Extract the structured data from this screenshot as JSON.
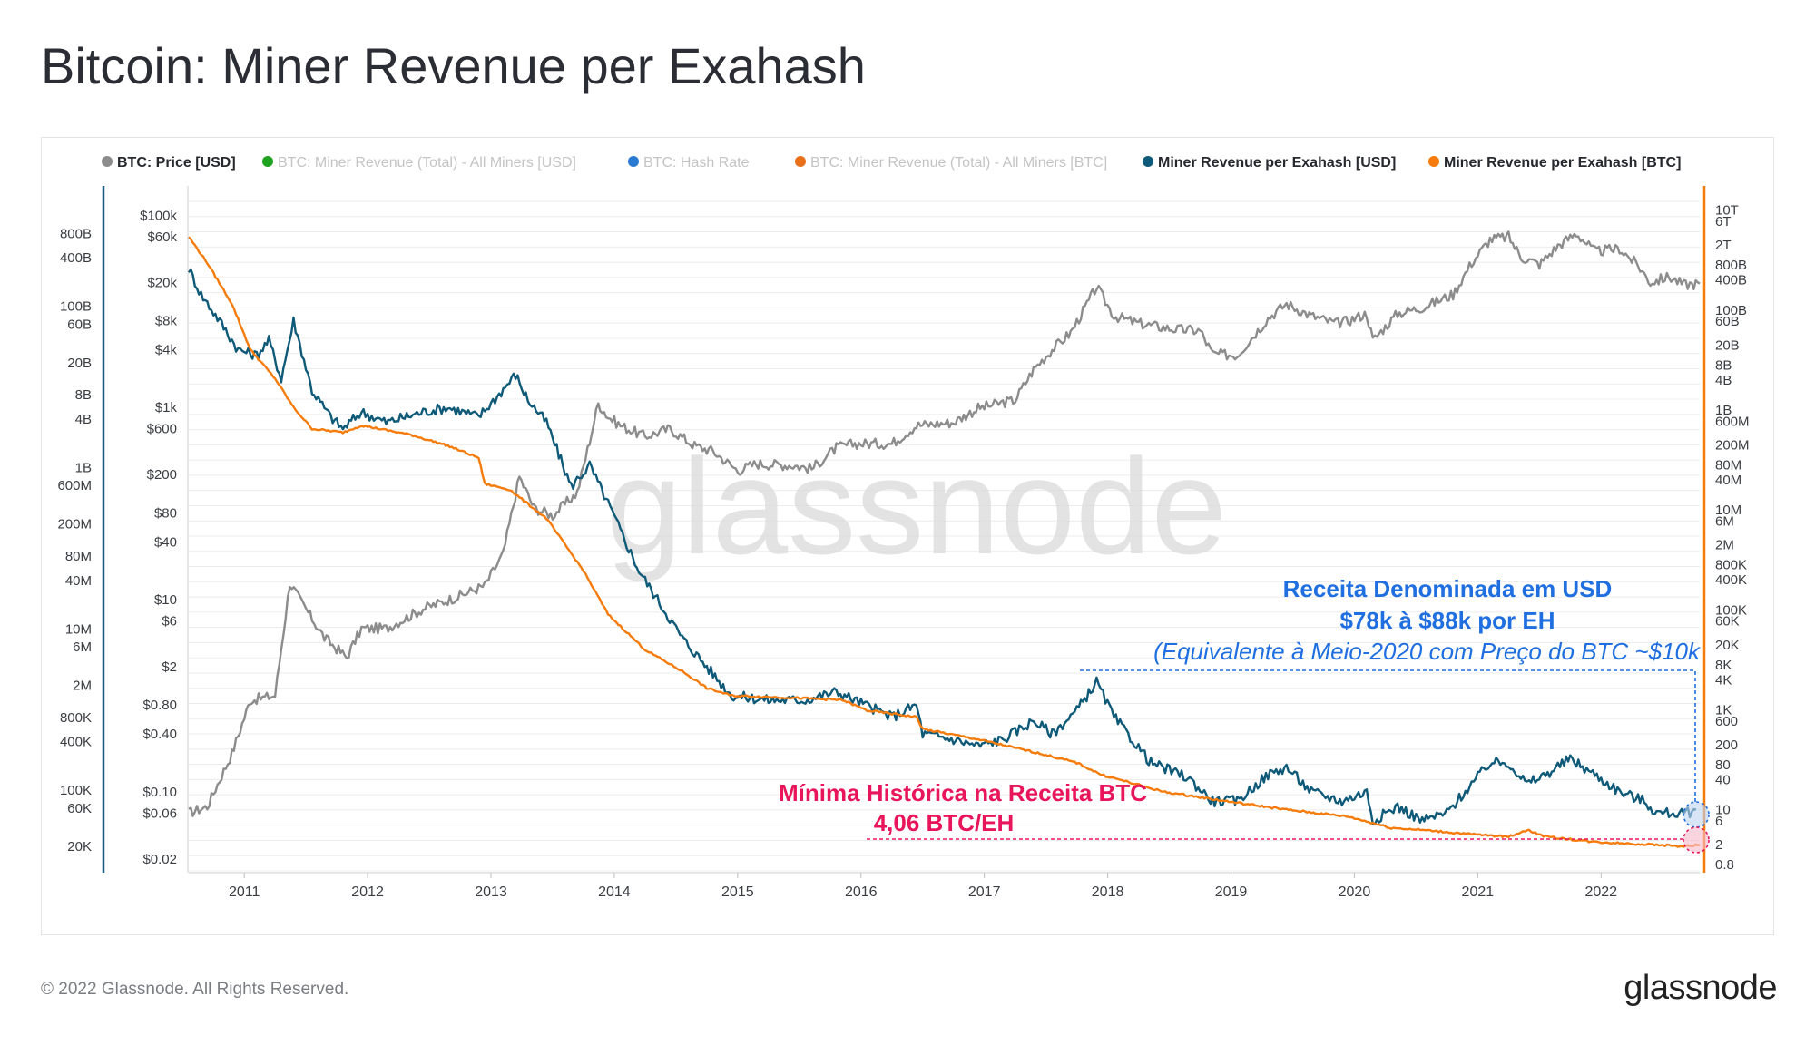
{
  "title": "Bitcoin: Miner Revenue per Exahash",
  "footer": {
    "copyright": "© 2022 Glassnode. All Rights Reserved.",
    "logo_text": "glassnode"
  },
  "watermark": "glassnode",
  "chart_data": {
    "type": "line",
    "title": "Bitcoin: Miner Revenue per Exahash",
    "legend": [
      {
        "name": "BTC: Price [USD]",
        "color": "#8c8c8c",
        "active": true
      },
      {
        "name": "BTC: Miner Revenue (Total) - All Miners [USD]",
        "color": "#1fa21f",
        "active": false
      },
      {
        "name": "BTC: Hash Rate",
        "color": "#2a7ad1",
        "active": false
      },
      {
        "name": "BTC: Miner Revenue (Total) - All Miners [BTC]",
        "color": "#e8701a",
        "active": false
      },
      {
        "name": "Miner Revenue per Exahash [USD]",
        "color": "#0f5a78",
        "active": true
      },
      {
        "name": "Miner Revenue per Exahash [BTC]",
        "color": "#f57c0c",
        "active": true
      }
    ],
    "legend_placement": "top",
    "x_ticks": [
      "2011",
      "2012",
      "2013",
      "2014",
      "2015",
      "2016",
      "2017",
      "2018",
      "2019",
      "2020",
      "2021",
      "2022"
    ],
    "xlim": [
      2010.6,
      2022.85
    ],
    "axes": {
      "left_outer": {
        "scale": "log",
        "range": [
          10000,
          2000000000000
        ],
        "ticks": [
          "800B",
          "400B",
          "100B",
          "60B",
          "20B",
          "8B",
          "4B",
          "1B",
          "600M",
          "200M",
          "80M",
          "40M",
          "10M",
          "6M",
          "2M",
          "800K",
          "400K",
          "100K",
          "60K",
          "20K"
        ],
        "tick_values": [
          800000000000.0,
          400000000000.0,
          100000000000.0,
          60000000000.0,
          20000000000.0,
          8000000000.0,
          4000000000.0,
          1000000000.0,
          600000000.0,
          200000000.0,
          80000000.0,
          40000000.0,
          10000000.0,
          6000000.0,
          2000000.0,
          800000.0,
          400000.0,
          100000.0,
          60000.0,
          20000.0
        ]
      },
      "left_inner": {
        "scale": "log",
        "range": [
          0.015,
          140000
        ],
        "ticks": [
          "$100k",
          "$60k",
          "$20k",
          "$8k",
          "$4k",
          "$1k",
          "$600",
          "$200",
          "$80",
          "$40",
          "$10",
          "$6",
          "$2",
          "$0.80",
          "$0.40",
          "$0.10",
          "$0.06",
          "$0.02"
        ],
        "tick_values": [
          100000,
          60000,
          20000,
          8000,
          4000,
          1000,
          600,
          200,
          80,
          40,
          10,
          6,
          2,
          0.8,
          0.4,
          0.1,
          0.06,
          0.02
        ]
      },
      "right": {
        "scale": "log",
        "range": [
          0.6,
          15000000000000
        ],
        "ticks": [
          "10T",
          "6T",
          "2T",
          "800B",
          "400B",
          "100B",
          "60B",
          "20B",
          "8B",
          "4B",
          "1B",
          "600M",
          "200M",
          "80M",
          "40M",
          "10M",
          "6M",
          "2M",
          "800K",
          "400K",
          "100K",
          "60K",
          "20K",
          "8K",
          "4K",
          "1K",
          "600",
          "200",
          "80",
          "40",
          "10",
          "6",
          "2",
          "0.8"
        ],
        "tick_values": [
          10000000000000.0,
          6000000000000.0,
          2000000000000.0,
          800000000000.0,
          400000000000.0,
          100000000000.0,
          60000000000.0,
          20000000000.0,
          8000000000.0,
          4000000000.0,
          1000000000.0,
          600000000.0,
          200000000.0,
          80000000.0,
          40000000.0,
          10000000.0,
          6000000.0,
          2000000.0,
          800000.0,
          400000.0,
          100000.0,
          60000.0,
          20000.0,
          8000,
          4000,
          1000,
          600,
          200,
          80,
          40,
          10,
          6,
          2,
          0.8
        ]
      }
    },
    "grid": true,
    "series": [
      {
        "name": "BTC: Price [USD]",
        "axis": "left_inner",
        "color": "#8c8c8c",
        "points": [
          [
            2010.6,
            0.06
          ],
          [
            2010.75,
            0.07
          ],
          [
            2010.95,
            0.25
          ],
          [
            2011.1,
            0.9
          ],
          [
            2011.3,
            1.0
          ],
          [
            2011.42,
            15
          ],
          [
            2011.5,
            10
          ],
          [
            2011.7,
            4
          ],
          [
            2011.88,
            2.5
          ],
          [
            2012.0,
            5
          ],
          [
            2012.2,
            5
          ],
          [
            2012.5,
            8
          ],
          [
            2012.8,
            11
          ],
          [
            2013.0,
            14
          ],
          [
            2013.15,
            30
          ],
          [
            2013.28,
            190
          ],
          [
            2013.4,
            90
          ],
          [
            2013.55,
            75
          ],
          [
            2013.75,
            130
          ],
          [
            2013.85,
            450
          ],
          [
            2013.92,
            1100
          ],
          [
            2014.0,
            800
          ],
          [
            2014.1,
            650
          ],
          [
            2014.3,
            500
          ],
          [
            2014.5,
            600
          ],
          [
            2014.7,
            400
          ],
          [
            2014.85,
            350
          ],
          [
            2015.05,
            220
          ],
          [
            2015.2,
            260
          ],
          [
            2015.5,
            250
          ],
          [
            2015.65,
            230
          ],
          [
            2015.85,
            380
          ],
          [
            2016.0,
            420
          ],
          [
            2016.3,
            420
          ],
          [
            2016.5,
            650
          ],
          [
            2016.8,
            700
          ],
          [
            2017.0,
            980
          ],
          [
            2017.3,
            1200
          ],
          [
            2017.45,
            2500
          ],
          [
            2017.6,
            4000
          ],
          [
            2017.75,
            6000
          ],
          [
            2017.85,
            10000
          ],
          [
            2017.96,
            18000
          ],
          [
            2018.1,
            9000
          ],
          [
            2018.3,
            7500
          ],
          [
            2018.6,
            6500
          ],
          [
            2018.8,
            6300
          ],
          [
            2018.9,
            3600
          ],
          [
            2019.1,
            3500
          ],
          [
            2019.35,
            8500
          ],
          [
            2019.5,
            12000
          ],
          [
            2019.7,
            9000
          ],
          [
            2019.9,
            7500
          ],
          [
            2020.0,
            8000
          ],
          [
            2020.15,
            9500
          ],
          [
            2020.2,
            5000
          ],
          [
            2020.4,
            9500
          ],
          [
            2020.6,
            11000
          ],
          [
            2020.85,
            15000
          ],
          [
            2021.0,
            32000
          ],
          [
            2021.15,
            56000
          ],
          [
            2021.3,
            60000
          ],
          [
            2021.4,
            37000
          ],
          [
            2021.55,
            31000
          ],
          [
            2021.7,
            48000
          ],
          [
            2021.85,
            65000
          ],
          [
            2022.0,
            42000
          ],
          [
            2022.2,
            45000
          ],
          [
            2022.35,
            30000
          ],
          [
            2022.45,
            20000
          ],
          [
            2022.6,
            23000
          ],
          [
            2022.72,
            19000
          ],
          [
            2022.85,
            19500
          ]
        ]
      },
      {
        "name": "Miner Revenue per Exahash [USD]",
        "axis": "left_inner",
        "color": "#0f5a78",
        "points": [
          [
            2010.6,
            28000
          ],
          [
            2010.7,
            15000
          ],
          [
            2010.85,
            8000
          ],
          [
            2011.0,
            4000
          ],
          [
            2011.15,
            3500
          ],
          [
            2011.25,
            5000
          ],
          [
            2011.35,
            2000
          ],
          [
            2011.45,
            8000
          ],
          [
            2011.6,
            1500
          ],
          [
            2011.75,
            800
          ],
          [
            2011.85,
            600
          ],
          [
            2012.0,
            900
          ],
          [
            2012.2,
            700
          ],
          [
            2012.5,
            900
          ],
          [
            2012.7,
            1000
          ],
          [
            2012.95,
            800
          ],
          [
            2013.1,
            1300
          ],
          [
            2013.25,
            2200
          ],
          [
            2013.35,
            1200
          ],
          [
            2013.5,
            700
          ],
          [
            2013.7,
            150
          ],
          [
            2013.85,
            250
          ],
          [
            2014.0,
            100
          ],
          [
            2014.25,
            20
          ],
          [
            2014.4,
            10
          ],
          [
            2014.6,
            4
          ],
          [
            2014.8,
            2
          ],
          [
            2015.0,
            1.0
          ],
          [
            2015.3,
            0.9
          ],
          [
            2015.6,
            0.9
          ],
          [
            2015.85,
            1.1
          ],
          [
            2016.0,
            0.9
          ],
          [
            2016.3,
            0.6
          ],
          [
            2016.5,
            0.8
          ],
          [
            2016.55,
            0.4
          ],
          [
            2016.8,
            0.35
          ],
          [
            2017.0,
            0.3
          ],
          [
            2017.2,
            0.35
          ],
          [
            2017.45,
            0.55
          ],
          [
            2017.6,
            0.4
          ],
          [
            2017.8,
            0.7
          ],
          [
            2017.96,
            1.4
          ],
          [
            2018.1,
            0.6
          ],
          [
            2018.4,
            0.2
          ],
          [
            2018.7,
            0.14
          ],
          [
            2018.9,
            0.08
          ],
          [
            2019.1,
            0.08
          ],
          [
            2019.35,
            0.15
          ],
          [
            2019.5,
            0.18
          ],
          [
            2019.7,
            0.1
          ],
          [
            2019.95,
            0.08
          ],
          [
            2020.15,
            0.1
          ],
          [
            2020.2,
            0.05
          ],
          [
            2020.4,
            0.07
          ],
          [
            2020.6,
            0.05
          ],
          [
            2020.8,
            0.06
          ],
          [
            2021.0,
            0.12
          ],
          [
            2021.15,
            0.2
          ],
          [
            2021.3,
            0.2
          ],
          [
            2021.45,
            0.12
          ],
          [
            2021.6,
            0.15
          ],
          [
            2021.8,
            0.22
          ],
          [
            2022.0,
            0.15
          ],
          [
            2022.2,
            0.1
          ],
          [
            2022.4,
            0.08
          ],
          [
            2022.5,
            0.06
          ],
          [
            2022.65,
            0.06
          ],
          [
            2022.72,
            0.058
          ],
          [
            2022.82,
            0.065
          ]
        ]
      },
      {
        "name": "Miner Revenue per Exahash [BTC]",
        "axis": "left_inner",
        "color": "#f57c0c",
        "points": [
          [
            2010.6,
            60000
          ],
          [
            2010.75,
            32000
          ],
          [
            2010.95,
            12000
          ],
          [
            2011.1,
            4000
          ],
          [
            2011.3,
            2000
          ],
          [
            2011.45,
            1000
          ],
          [
            2011.6,
            600
          ],
          [
            2011.85,
            550
          ],
          [
            2012.0,
            650
          ],
          [
            2012.4,
            520
          ],
          [
            2012.7,
            400
          ],
          [
            2012.95,
            300
          ],
          [
            2013.0,
            160
          ],
          [
            2013.2,
            140
          ],
          [
            2013.5,
            70
          ],
          [
            2013.8,
            20
          ],
          [
            2014.0,
            7
          ],
          [
            2014.3,
            3
          ],
          [
            2014.6,
            1.8
          ],
          [
            2014.8,
            1.2
          ],
          [
            2015.0,
            1.0
          ],
          [
            2015.5,
            0.95
          ],
          [
            2015.9,
            0.9
          ],
          [
            2016.1,
            0.7
          ],
          [
            2016.5,
            0.6
          ],
          [
            2016.55,
            0.45
          ],
          [
            2017.0,
            0.35
          ],
          [
            2017.5,
            0.25
          ],
          [
            2017.8,
            0.2
          ],
          [
            2018.0,
            0.15
          ],
          [
            2018.5,
            0.1
          ],
          [
            2019.0,
            0.08
          ],
          [
            2019.5,
            0.065
          ],
          [
            2020.0,
            0.055
          ],
          [
            2020.35,
            0.042
          ],
          [
            2020.6,
            0.04
          ],
          [
            2021.0,
            0.036
          ],
          [
            2021.3,
            0.034
          ],
          [
            2021.45,
            0.04
          ],
          [
            2021.6,
            0.034
          ],
          [
            2022.0,
            0.03
          ],
          [
            2022.5,
            0.028
          ],
          [
            2022.72,
            0.027
          ],
          [
            2022.85,
            0.028
          ]
        ]
      }
    ],
    "annotations": [
      {
        "id": "usd",
        "line1": "Receita Denominada em USD",
        "line2": "$78k à $88k por EH",
        "line3": "(Equivalente à Meio-2020 com Preço do BTC ~$10k",
        "color": "#1f6fe0"
      },
      {
        "id": "btc",
        "line1": "Mínima Histórica na Receita BTC",
        "line2": "4,06 BTC/EH",
        "color": "#e8155b"
      }
    ]
  }
}
